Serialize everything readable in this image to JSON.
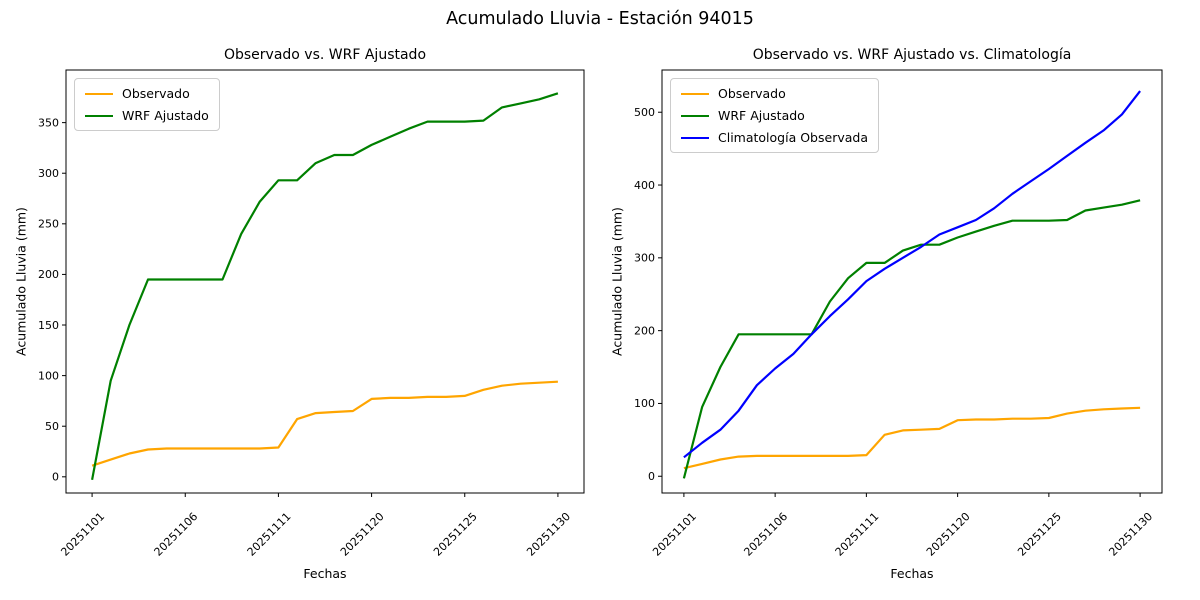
{
  "figure": {
    "title": "Acumulado Lluvia - Estación 94015",
    "background_color": "#ffffff",
    "text_color": "#000000"
  },
  "chart_data": [
    {
      "type": "line",
      "title": "Observado vs. WRF Ajustado",
      "xlabel": "Fechas",
      "ylabel": "Acumulado Lluvia (mm)",
      "grid": false,
      "legend_position": "upper left",
      "xtick_positions": [
        0,
        5,
        10,
        15,
        20,
        25
      ],
      "xtick_labels": [
        "20251101",
        "20251106",
        "20251111",
        "20251120",
        "20251125",
        "20251130"
      ],
      "yticks": [
        0,
        50,
        100,
        150,
        200,
        250,
        300,
        350
      ],
      "xlim": [
        -1.4,
        26.4
      ],
      "ylim": [
        -16,
        402
      ],
      "series": [
        {
          "name": "Observado",
          "color": "#FFA500",
          "values": [
            11,
            17,
            23,
            27,
            28,
            28,
            28,
            28,
            28,
            28,
            29,
            57,
            63,
            64,
            65,
            77,
            78,
            78,
            79,
            79,
            80,
            86,
            90,
            92,
            93,
            94
          ]
        },
        {
          "name": "WRF Ajustado",
          "color": "#008000",
          "values": [
            -3,
            95,
            150,
            195,
            195,
            195,
            195,
            195,
            240,
            272,
            293,
            293,
            310,
            318,
            318,
            328,
            336,
            344,
            351,
            351,
            351,
            352,
            365,
            369,
            373,
            379
          ]
        }
      ]
    },
    {
      "type": "line",
      "title": "Observado vs. WRF Ajustado vs. Climatología",
      "xlabel": "Fechas",
      "ylabel": "Acumulado Lluvia (mm)",
      "grid": false,
      "legend_position": "upper left",
      "xtick_positions": [
        0,
        5,
        10,
        15,
        20,
        25
      ],
      "xtick_labels": [
        "20251101",
        "20251106",
        "20251111",
        "20251120",
        "20251125",
        "20251130"
      ],
      "yticks": [
        0,
        100,
        200,
        300,
        400,
        500
      ],
      "xlim": [
        -1.2,
        26.2
      ],
      "ylim": [
        -23,
        558
      ],
      "series": [
        {
          "name": "Observado",
          "color": "#FFA500",
          "values": [
            11,
            17,
            23,
            27,
            28,
            28,
            28,
            28,
            28,
            28,
            29,
            57,
            63,
            64,
            65,
            77,
            78,
            78,
            79,
            79,
            80,
            86,
            90,
            92,
            93,
            94
          ]
        },
        {
          "name": "WRF Ajustado",
          "color": "#008000",
          "values": [
            -3,
            95,
            150,
            195,
            195,
            195,
            195,
            195,
            240,
            272,
            293,
            293,
            310,
            318,
            318,
            328,
            336,
            344,
            351,
            351,
            351,
            352,
            365,
            369,
            373,
            379
          ]
        },
        {
          "name": "Climatología Observada",
          "color": "#0000FF",
          "values": [
            26,
            46,
            64,
            90,
            125,
            148,
            168,
            195,
            220,
            243,
            268,
            285,
            300,
            315,
            332,
            342,
            352,
            368,
            388,
            405,
            422,
            440,
            458,
            475,
            497,
            529
          ]
        }
      ]
    }
  ]
}
